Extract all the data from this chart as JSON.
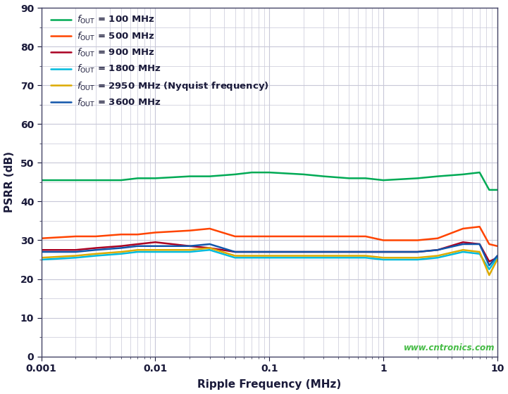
{
  "xlabel": "Ripple Frequency (MHz)",
  "ylabel": "PSRR (dB)",
  "xlim": [
    0.001,
    10
  ],
  "ylim": [
    0,
    90
  ],
  "yticks": [
    0,
    10,
    20,
    30,
    40,
    50,
    60,
    70,
    80,
    90
  ],
  "bg_color": "#ffffff",
  "plot_area_color": "#ffffff",
  "grid_major_color": "#c8c8d8",
  "grid_minor_color": "#c8c8d8",
  "tick_label_color": "#1a1a3a",
  "axis_label_color": "#1a1a3a",
  "watermark": "www.cntronics.com",
  "watermark_color": "#44bb44",
  "legend_text_color": "#1a1a3a",
  "series": [
    {
      "label_sub": "OUT",
      "label_val": " = 100 MHz",
      "color": "#00aa55",
      "x": [
        0.001,
        0.002,
        0.003,
        0.005,
        0.007,
        0.01,
        0.02,
        0.03,
        0.05,
        0.07,
        0.1,
        0.2,
        0.3,
        0.5,
        0.7,
        1.0,
        2.0,
        3.0,
        5.0,
        7.0,
        8.5,
        10.0
      ],
      "y": [
        45.5,
        45.5,
        45.5,
        45.5,
        46.0,
        46.0,
        46.5,
        46.5,
        47.0,
        47.5,
        47.5,
        47.0,
        46.5,
        46.0,
        46.0,
        45.5,
        46.0,
        46.5,
        47.0,
        47.5,
        43.0,
        43.0
      ]
    },
    {
      "label_sub": "OUT",
      "label_val": " = 500 MHz",
      "color": "#ff4400",
      "x": [
        0.001,
        0.002,
        0.003,
        0.005,
        0.007,
        0.01,
        0.02,
        0.03,
        0.05,
        0.07,
        0.1,
        0.2,
        0.3,
        0.5,
        0.7,
        1.0,
        2.0,
        3.0,
        5.0,
        7.0,
        8.5,
        10.0
      ],
      "y": [
        30.5,
        31.0,
        31.0,
        31.5,
        31.5,
        32.0,
        32.5,
        33.0,
        31.0,
        31.0,
        31.0,
        31.0,
        31.0,
        31.0,
        31.0,
        30.0,
        30.0,
        30.5,
        33.0,
        33.5,
        29.0,
        28.5
      ]
    },
    {
      "label_sub": "OUT",
      "label_val": " = 900 MHz",
      "color": "#aa0022",
      "x": [
        0.001,
        0.002,
        0.003,
        0.005,
        0.007,
        0.01,
        0.02,
        0.03,
        0.05,
        0.07,
        0.1,
        0.2,
        0.3,
        0.5,
        0.7,
        1.0,
        2.0,
        3.0,
        5.0,
        7.0,
        8.5,
        10.0
      ],
      "y": [
        27.5,
        27.5,
        28.0,
        28.5,
        29.0,
        29.5,
        28.5,
        28.0,
        27.0,
        27.0,
        27.0,
        27.0,
        27.0,
        27.0,
        27.0,
        27.0,
        27.0,
        27.5,
        29.5,
        29.0,
        24.5,
        25.5
      ]
    },
    {
      "label_sub": "OUT",
      "label_val": " = 1800 MHz",
      "color": "#00bbdd",
      "x": [
        0.001,
        0.002,
        0.003,
        0.005,
        0.007,
        0.01,
        0.02,
        0.03,
        0.05,
        0.07,
        0.1,
        0.2,
        0.3,
        0.5,
        0.7,
        1.0,
        2.0,
        3.0,
        5.0,
        7.0,
        8.5,
        10.0
      ],
      "y": [
        25.0,
        25.5,
        26.0,
        26.5,
        27.0,
        27.0,
        27.0,
        27.5,
        25.5,
        25.5,
        25.5,
        25.5,
        25.5,
        25.5,
        25.5,
        25.0,
        25.0,
        25.5,
        27.0,
        26.5,
        22.5,
        25.5
      ]
    },
    {
      "label_sub": "OUT",
      "label_val": " = 2950 MHz (Nyquist frequency)",
      "color": "#ddaa00",
      "x": [
        0.001,
        0.002,
        0.003,
        0.005,
        0.007,
        0.01,
        0.02,
        0.03,
        0.05,
        0.07,
        0.1,
        0.2,
        0.3,
        0.5,
        0.7,
        1.0,
        2.0,
        3.0,
        5.0,
        7.0,
        8.5,
        10.0
      ],
      "y": [
        25.5,
        26.0,
        26.5,
        27.0,
        27.5,
        27.5,
        27.5,
        28.0,
        26.0,
        26.0,
        26.0,
        26.0,
        26.0,
        26.0,
        26.0,
        25.5,
        25.5,
        26.0,
        27.5,
        27.0,
        21.0,
        25.0
      ]
    },
    {
      "label_sub": "OUT",
      "label_val": " = 3600 MHz",
      "color": "#1155aa",
      "x": [
        0.001,
        0.002,
        0.003,
        0.005,
        0.007,
        0.01,
        0.02,
        0.03,
        0.05,
        0.07,
        0.1,
        0.2,
        0.3,
        0.5,
        0.7,
        1.0,
        2.0,
        3.0,
        5.0,
        7.0,
        8.5,
        10.0
      ],
      "y": [
        27.0,
        27.0,
        27.5,
        28.0,
        28.5,
        28.5,
        28.5,
        29.0,
        27.0,
        27.0,
        27.0,
        27.0,
        27.0,
        27.0,
        27.0,
        27.0,
        27.0,
        27.5,
        29.0,
        29.0,
        23.5,
        26.0
      ]
    }
  ]
}
